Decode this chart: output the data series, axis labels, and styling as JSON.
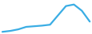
{
  "x": [
    0,
    1,
    2,
    3,
    4,
    5,
    6,
    7,
    8,
    9,
    10,
    11
  ],
  "y": [
    0.2,
    0.5,
    1.0,
    1.8,
    2.0,
    2.2,
    2.5,
    5.5,
    8.5,
    9.0,
    7.0,
    3.5
  ],
  "line_color": "#3aade4",
  "line_width": 1.6,
  "background_color": "#ffffff",
  "xlim": [
    -0.3,
    11.3
  ],
  "ylim": [
    -0.5,
    10.5
  ]
}
